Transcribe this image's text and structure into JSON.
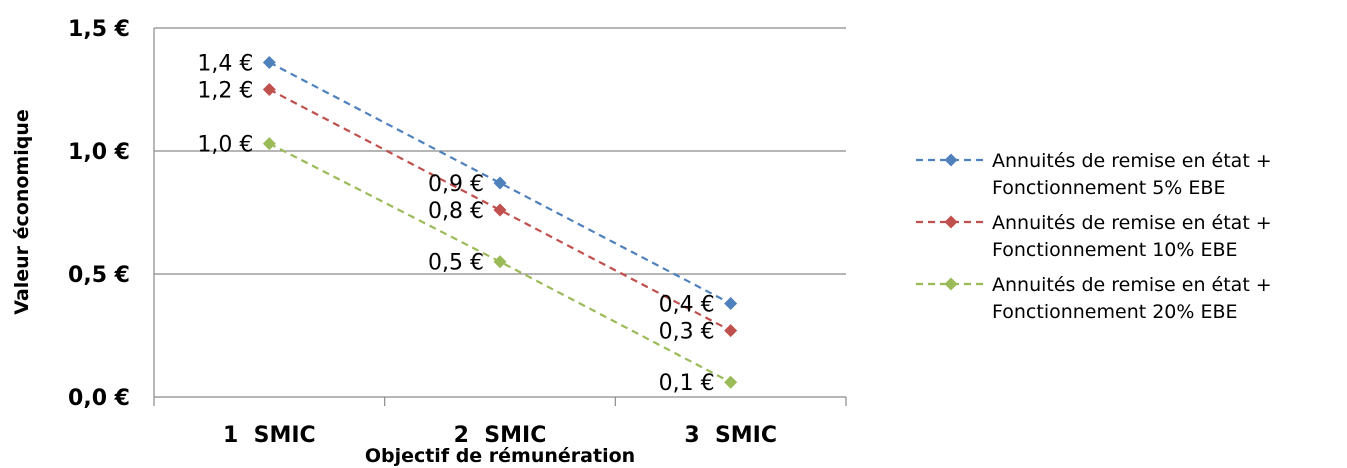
{
  "chart_data": {
    "type": "line",
    "categories": [
      "1  SMIC",
      "2  SMIC",
      "3  SMIC"
    ],
    "ylim": [
      0,
      1.5
    ],
    "yticks": [
      "0,0 €",
      "0,5 €",
      "1,0 €",
      "1,5 €"
    ],
    "ytick_values": [
      0,
      0.5,
      1.0,
      1.5
    ],
    "ylabel": "Valeur économique",
    "xlabel": "Objectif de rémunération",
    "grid": true,
    "legend_position": "right",
    "series": [
      {
        "name": [
          "Annuités de remise en état +",
          "Fonctionnement 5% EBE"
        ],
        "values": [
          1.36,
          0.87,
          0.38
        ],
        "labels": [
          "1,4 €",
          "0,9 €",
          "0,4 €"
        ],
        "color": "#4F81BD"
      },
      {
        "name": [
          "Annuités de remise en état +",
          "Fonctionnement 10% EBE"
        ],
        "values": [
          1.25,
          0.76,
          0.27
        ],
        "labels": [
          "1,2 €",
          "0,8 €",
          "0,3 €"
        ],
        "color": "#C0504D"
      },
      {
        "name": [
          "Annuités de remise en état +",
          "Fonctionnement 20% EBE"
        ],
        "values": [
          1.03,
          0.55,
          0.06
        ],
        "labels": [
          "1,0 €",
          "0,5 €",
          "0,1 €"
        ],
        "color": "#9BBB59"
      }
    ]
  }
}
